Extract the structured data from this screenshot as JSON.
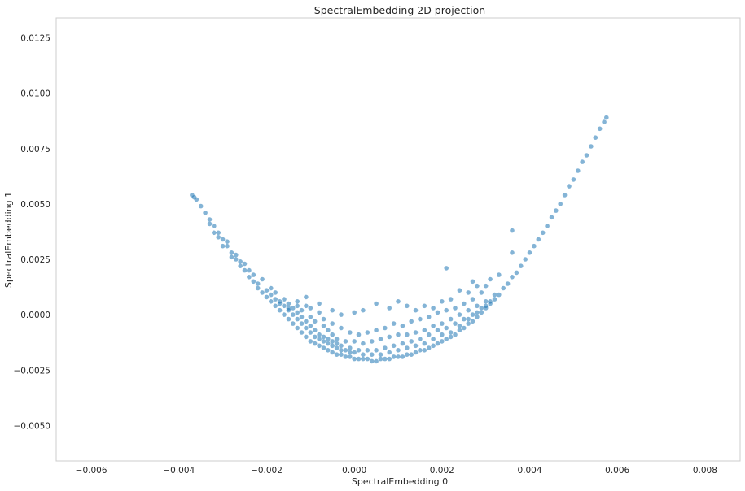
{
  "chart_data": {
    "type": "scatter",
    "title": "SpectralEmbedding 2D projection",
    "xlabel": "SpectralEmbedding 0",
    "ylabel": "SpectralEmbedding 1",
    "xlim": [
      -0.0068,
      0.0088
    ],
    "ylim": [
      -0.0066,
      0.0134
    ],
    "grid": false,
    "color": "#1f77b4",
    "point_alpha": 0.55,
    "xticks": [
      -0.006,
      -0.004,
      -0.002,
      0.0,
      0.002,
      0.004,
      0.006,
      0.008
    ],
    "xtick_labels": [
      "−0.006",
      "−0.004",
      "−0.002",
      "0.000",
      "0.002",
      "0.004",
      "0.006",
      "0.008"
    ],
    "yticks": [
      -0.005,
      -0.0025,
      0.0,
      0.0025,
      0.005,
      0.0075,
      0.01,
      0.0125
    ],
    "ytick_labels": [
      "−0.0050",
      "−0.0025",
      "0.0000",
      "0.0025",
      "0.0050",
      "0.0075",
      "0.0100",
      "0.0125"
    ],
    "series": [
      {
        "points": [
          [
            -0.0037,
            0.0054
          ],
          [
            -0.00365,
            0.0053
          ],
          [
            -0.0036,
            0.0052
          ],
          [
            -0.0035,
            0.0049
          ],
          [
            -0.0034,
            0.0046
          ],
          [
            -0.0033,
            0.0043
          ],
          [
            -0.0032,
            0.004
          ],
          [
            -0.0031,
            0.0037
          ],
          [
            -0.003,
            0.0034
          ],
          [
            -0.0029,
            0.0031
          ],
          [
            -0.0028,
            0.0028
          ],
          [
            -0.0027,
            0.0025
          ],
          [
            -0.0026,
            0.0022
          ],
          [
            -0.0025,
            0.002
          ],
          [
            -0.0024,
            0.0017
          ],
          [
            -0.0023,
            0.0015
          ],
          [
            -0.0022,
            0.0012
          ],
          [
            -0.0021,
            0.001
          ],
          [
            -0.002,
            0.0008
          ],
          [
            -0.0019,
            0.0006
          ],
          [
            -0.0018,
            0.0004
          ],
          [
            -0.0017,
            0.0002
          ],
          [
            -0.0016,
            0.0
          ],
          [
            -0.0015,
            -0.0002
          ],
          [
            -0.0014,
            -0.0004
          ],
          [
            -0.0013,
            -0.0006
          ],
          [
            -0.0012,
            -0.0008
          ],
          [
            -0.0011,
            -0.001
          ],
          [
            -0.001,
            -0.0012
          ],
          [
            -0.0009,
            -0.0013
          ],
          [
            -0.0008,
            -0.0014
          ],
          [
            -0.0007,
            -0.0015
          ],
          [
            -0.0006,
            -0.0016
          ],
          [
            -0.0005,
            -0.0017
          ],
          [
            -0.0004,
            -0.0018
          ],
          [
            -0.0003,
            -0.0018
          ],
          [
            -0.0002,
            -0.0019
          ],
          [
            -0.0001,
            -0.0019
          ],
          [
            0.0,
            -0.002
          ],
          [
            0.0001,
            -0.002
          ],
          [
            0.0002,
            -0.002
          ],
          [
            0.0003,
            -0.002
          ],
          [
            0.0004,
            -0.0021
          ],
          [
            0.0005,
            -0.0021
          ],
          [
            0.0006,
            -0.002
          ],
          [
            0.0007,
            -0.002
          ],
          [
            0.0008,
            -0.002
          ],
          [
            0.0009,
            -0.0019
          ],
          [
            0.001,
            -0.0019
          ],
          [
            0.0011,
            -0.0019
          ],
          [
            0.0012,
            -0.0018
          ],
          [
            0.0013,
            -0.0018
          ],
          [
            0.0014,
            -0.0017
          ],
          [
            0.0015,
            -0.0016
          ],
          [
            0.0016,
            -0.0016
          ],
          [
            0.0017,
            -0.0015
          ],
          [
            0.0018,
            -0.0014
          ],
          [
            0.0019,
            -0.0013
          ],
          [
            0.002,
            -0.0012
          ],
          [
            0.0021,
            -0.0011
          ],
          [
            0.0022,
            -0.001
          ],
          [
            0.0023,
            -0.0009
          ],
          [
            0.0024,
            -0.0007
          ],
          [
            0.0025,
            -0.0006
          ],
          [
            0.0026,
            -0.0004
          ],
          [
            0.0027,
            -0.0003
          ],
          [
            0.0028,
            -0.0001
          ],
          [
            0.0029,
            0.0001
          ],
          [
            0.003,
            0.0003
          ],
          [
            0.0031,
            0.0005
          ],
          [
            0.0032,
            0.0007
          ],
          [
            0.0033,
            0.0009
          ],
          [
            0.0034,
            0.0012
          ],
          [
            0.0035,
            0.0014
          ],
          [
            0.0036,
            0.0017
          ],
          [
            0.0037,
            0.0019
          ],
          [
            0.0038,
            0.0022
          ],
          [
            0.0039,
            0.0025
          ],
          [
            0.004,
            0.0028
          ],
          [
            0.0041,
            0.0031
          ],
          [
            0.0042,
            0.0034
          ],
          [
            0.0043,
            0.0037
          ],
          [
            0.0044,
            0.004
          ],
          [
            0.0045,
            0.0044
          ],
          [
            0.0046,
            0.0047
          ],
          [
            0.0047,
            0.005
          ],
          [
            0.0048,
            0.0054
          ],
          [
            0.0049,
            0.0058
          ],
          [
            0.005,
            0.0061
          ],
          [
            0.0051,
            0.0065
          ],
          [
            0.0052,
            0.0069
          ],
          [
            0.0053,
            0.0072
          ],
          [
            0.0054,
            0.0076
          ],
          [
            0.0055,
            0.008
          ],
          [
            0.0056,
            0.0084
          ],
          [
            0.0057,
            0.0087
          ],
          [
            0.00575,
            0.0089
          ],
          [
            -0.0033,
            0.0041
          ],
          [
            -0.0031,
            0.0035
          ],
          [
            -0.0029,
            0.0033
          ],
          [
            -0.0027,
            0.0027
          ],
          [
            -0.0025,
            0.0023
          ],
          [
            -0.0023,
            0.0018
          ],
          [
            -0.0022,
            0.0014
          ],
          [
            -0.002,
            0.0011
          ],
          [
            -0.0019,
            0.0009
          ],
          [
            -0.0017,
            0.0006
          ],
          [
            -0.0016,
            0.0004
          ],
          [
            -0.0015,
            0.0002
          ],
          [
            -0.0014,
            0.0
          ],
          [
            -0.0013,
            -0.0002
          ],
          [
            -0.0012,
            -0.0004
          ],
          [
            -0.0011,
            -0.0006
          ],
          [
            -0.001,
            -0.0008
          ],
          [
            -0.0009,
            -0.001
          ],
          [
            -0.0008,
            -0.0011
          ],
          [
            -0.0007,
            -0.0012
          ],
          [
            -0.0006,
            -0.0013
          ],
          [
            -0.0005,
            -0.0014
          ],
          [
            -0.0004,
            -0.0015
          ],
          [
            -0.0003,
            -0.0016
          ],
          [
            -0.0002,
            -0.0016
          ],
          [
            -0.0001,
            -0.0017
          ],
          [
            0.0,
            -0.0017
          ],
          [
            0.0002,
            -0.0018
          ],
          [
            0.0004,
            -0.0018
          ],
          [
            0.0006,
            -0.0018
          ],
          [
            0.0008,
            -0.0017
          ],
          [
            0.001,
            -0.0016
          ],
          [
            0.0012,
            -0.0015
          ],
          [
            0.0014,
            -0.0014
          ],
          [
            0.0016,
            -0.0013
          ],
          [
            0.0018,
            -0.0011
          ],
          [
            0.002,
            -0.0009
          ],
          [
            0.0022,
            -0.0008
          ],
          [
            0.0024,
            -0.0005
          ],
          [
            0.0026,
            -0.0002
          ],
          [
            0.0028,
            0.0001
          ],
          [
            0.003,
            0.0004
          ],
          [
            -0.0032,
            0.0037
          ],
          [
            -0.003,
            0.0031
          ],
          [
            -0.0028,
            0.0026
          ],
          [
            -0.0026,
            0.0024
          ],
          [
            -0.0024,
            0.002
          ],
          [
            -0.0021,
            0.0016
          ],
          [
            -0.0019,
            0.0012
          ],
          [
            -0.0018,
            0.001
          ],
          [
            -0.0016,
            0.0007
          ],
          [
            -0.0015,
            0.0005
          ],
          [
            -0.0014,
            0.0003
          ],
          [
            -0.0013,
            0.0001
          ],
          [
            -0.0012,
            -0.0001
          ],
          [
            -0.0011,
            -0.0003
          ],
          [
            -0.001,
            -0.0005
          ],
          [
            -0.0009,
            -0.0007
          ],
          [
            -0.0008,
            -0.0009
          ],
          [
            -0.0007,
            -0.001
          ],
          [
            -0.0006,
            -0.0011
          ],
          [
            -0.0005,
            -0.0012
          ],
          [
            -0.0004,
            -0.0013
          ],
          [
            -0.0003,
            -0.0014
          ],
          [
            -0.0001,
            -0.0015
          ],
          [
            0.0001,
            -0.0016
          ],
          [
            0.0003,
            -0.0016
          ],
          [
            0.0005,
            -0.0016
          ],
          [
            0.0007,
            -0.0015
          ],
          [
            0.0009,
            -0.0014
          ],
          [
            0.0011,
            -0.0013
          ],
          [
            0.0013,
            -0.0012
          ],
          [
            0.0015,
            -0.0011
          ],
          [
            0.0017,
            -0.0009
          ],
          [
            0.0019,
            -0.0007
          ],
          [
            0.0021,
            -0.0006
          ],
          [
            0.0023,
            -0.0004
          ],
          [
            0.0025,
            -0.0002
          ],
          [
            0.0027,
            0.0
          ],
          [
            0.0029,
            0.0003
          ],
          [
            0.0031,
            0.0006
          ],
          [
            -0.0018,
            0.0007
          ],
          [
            -0.0017,
            0.0005
          ],
          [
            -0.0015,
            0.0003
          ],
          [
            -0.0013,
            0.0004
          ],
          [
            -0.0012,
            0.0002
          ],
          [
            -0.001,
            -0.0001
          ],
          [
            -0.0009,
            -0.0003
          ],
          [
            -0.0007,
            -0.0005
          ],
          [
            -0.0006,
            -0.0007
          ],
          [
            -0.0005,
            -0.0009
          ],
          [
            -0.0004,
            -0.0011
          ],
          [
            -0.0002,
            -0.0012
          ],
          [
            0.0,
            -0.0012
          ],
          [
            0.0002,
            -0.0013
          ],
          [
            0.0004,
            -0.0012
          ],
          [
            0.0006,
            -0.0011
          ],
          [
            0.0008,
            -0.001
          ],
          [
            0.001,
            -0.0009
          ],
          [
            0.0012,
            -0.0009
          ],
          [
            0.0014,
            -0.0008
          ],
          [
            0.0016,
            -0.0007
          ],
          [
            0.0018,
            -0.0005
          ],
          [
            0.002,
            -0.0004
          ],
          [
            0.0022,
            -0.0002
          ],
          [
            0.0024,
            0.0
          ],
          [
            0.0026,
            0.0002
          ],
          [
            0.0028,
            0.0004
          ],
          [
            0.003,
            0.0006
          ],
          [
            0.0032,
            0.0009
          ],
          [
            -0.0013,
            0.0006
          ],
          [
            -0.0011,
            0.0004
          ],
          [
            -0.001,
            0.0003
          ],
          [
            -0.0008,
            0.0001
          ],
          [
            -0.0007,
            -0.0002
          ],
          [
            -0.0005,
            -0.0004
          ],
          [
            -0.0003,
            -0.0006
          ],
          [
            -0.0001,
            -0.0008
          ],
          [
            0.0001,
            -0.0009
          ],
          [
            0.0003,
            -0.0008
          ],
          [
            0.0005,
            -0.0007
          ],
          [
            0.0007,
            -0.0006
          ],
          [
            0.0009,
            -0.0004
          ],
          [
            0.0011,
            -0.0005
          ],
          [
            0.0013,
            -0.0003
          ],
          [
            0.0015,
            -0.0002
          ],
          [
            0.0017,
            -0.0001
          ],
          [
            0.0019,
            0.0001
          ],
          [
            0.0021,
            0.0002
          ],
          [
            0.0023,
            0.0003
          ],
          [
            0.0025,
            0.0005
          ],
          [
            0.0027,
            0.0007
          ],
          [
            0.0029,
            0.001
          ],
          [
            0.0002,
            0.0002
          ],
          [
            0.0005,
            0.0005
          ],
          [
            0.0008,
            0.0003
          ],
          [
            0.001,
            0.0006
          ],
          [
            0.0012,
            0.0004
          ],
          [
            -0.0005,
            0.0002
          ],
          [
            -0.0003,
            0.0
          ],
          [
            0.0,
            0.0001
          ],
          [
            0.0014,
            0.0002
          ],
          [
            0.0016,
            0.0004
          ],
          [
            0.0018,
            0.0003
          ],
          [
            0.002,
            0.0006
          ],
          [
            0.0022,
            0.0007
          ],
          [
            0.0026,
            0.001
          ],
          [
            0.0028,
            0.0013
          ],
          [
            0.003,
            0.0013
          ],
          [
            0.0031,
            0.0016
          ],
          [
            0.0033,
            0.0018
          ],
          [
            0.0036,
            0.0028
          ],
          [
            0.0036,
            0.0038
          ],
          [
            0.0027,
            0.0015
          ],
          [
            0.0021,
            0.0021
          ],
          [
            0.0024,
            0.0011
          ],
          [
            -0.0008,
            0.0005
          ],
          [
            -0.0011,
            0.0008
          ]
        ]
      }
    ]
  }
}
